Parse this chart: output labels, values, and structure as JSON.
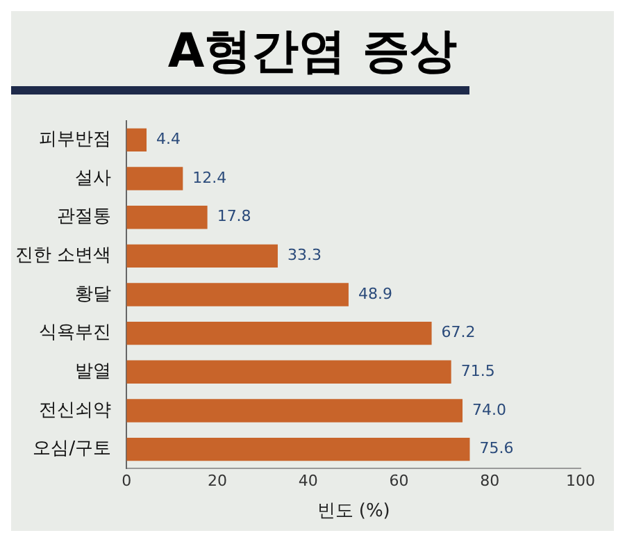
{
  "chart_data": {
    "type": "bar",
    "orientation": "horizontal",
    "title": "A형간염 증상",
    "xlabel": "빈도 (%)",
    "categories": [
      "피부반점",
      "설사",
      "관절통",
      "진한 소변색",
      "황달",
      "식욕부진",
      "발열",
      "전신쇠약",
      "오심/구토"
    ],
    "values": [
      4.4,
      12.4,
      17.8,
      33.3,
      48.9,
      67.2,
      71.5,
      74.0,
      75.6
    ],
    "value_labels": [
      "4.4",
      "12.4",
      "17.8",
      "33.3",
      "48.9",
      "67.2",
      "71.5",
      "74.0",
      "75.6"
    ],
    "color": "#c8642a",
    "xlim": [
      0,
      100
    ],
    "xticks": [
      0,
      20,
      40,
      60,
      80,
      100
    ],
    "grid": false,
    "legend": false
  }
}
